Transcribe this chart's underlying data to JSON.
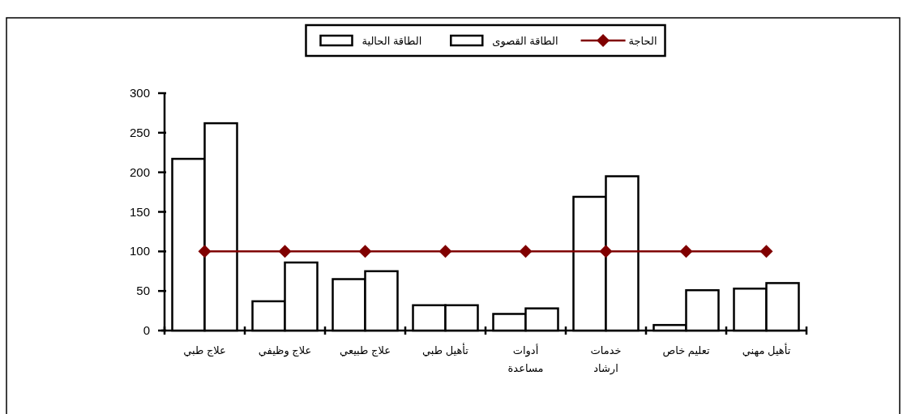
{
  "chart_data": {
    "type": "bar",
    "categories": [
      "علاج طبي",
      "علاج وظيفي",
      "علاج طبيعي",
      "تأهيل طبي",
      "أدوات مساعدة",
      "خدمات ارشاد",
      "تعليم خاص",
      "تأهيل مهني"
    ],
    "series": [
      {
        "name": "الطاقة الحالية",
        "type": "bar",
        "color": "#ffffff",
        "values": [
          217,
          37,
          65,
          32,
          21,
          169,
          7,
          53
        ]
      },
      {
        "name": "الطاقة القصوى",
        "type": "bar",
        "color": "#ffffff",
        "values": [
          262,
          86,
          75,
          32,
          28,
          195,
          51,
          60
        ]
      },
      {
        "name": "الحاجة",
        "type": "line",
        "color": "#800000",
        "marker": "diamond",
        "values": [
          100,
          100,
          100,
          100,
          100,
          100,
          100,
          100
        ]
      }
    ],
    "ylim": [
      0,
      300
    ],
    "yticks": [
      0,
      50,
      100,
      150,
      200,
      250,
      300
    ],
    "legend": "top",
    "grid": false
  }
}
